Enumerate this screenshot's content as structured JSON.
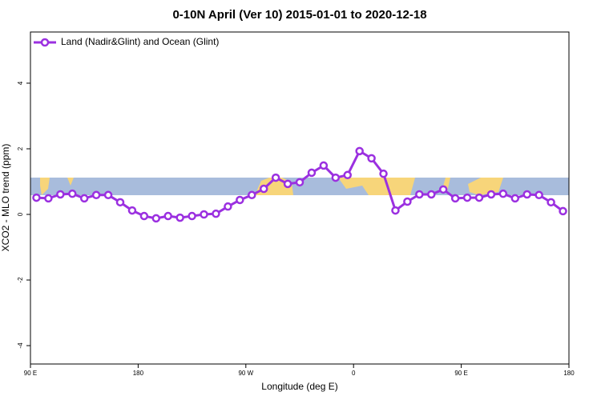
{
  "chart_data": {
    "type": "line",
    "title": "0-10N April (Ver 10)   2015-01-01 to 2020-12-18",
    "x_label": "Longitude (deg E)",
    "y_label": "XCO2 - MLO trend (ppm)",
    "x": [
      95,
      105,
      115,
      125,
      135,
      145,
      155,
      165,
      175,
      185,
      195,
      205,
      215,
      225,
      235,
      245,
      255,
      265,
      275,
      285,
      295,
      305,
      315,
      325,
      335,
      345,
      355,
      365,
      375,
      385,
      395,
      405,
      415,
      425,
      435,
      445,
      455,
      465,
      475,
      485,
      495,
      505,
      515,
      525,
      535
    ],
    "series": [
      {
        "name": "Land (Nadir&Glint) and Ocean (Glint)",
        "color": "#9b30e0",
        "values": [
          0.51,
          0.49,
          0.61,
          0.63,
          0.49,
          0.59,
          0.59,
          0.37,
          0.12,
          -0.05,
          -0.12,
          -0.05,
          -0.1,
          -0.05,
          0,
          0.02,
          0.24,
          0.44,
          0.59,
          0.78,
          1.12,
          0.93,
          0.98,
          1.27,
          1.49,
          1.12,
          1.2,
          1.93,
          1.71,
          1.24,
          0.12,
          0.39,
          0.61,
          0.61,
          0.76,
          0.49,
          0.51,
          0.51,
          0.61,
          0.63,
          0.49,
          0.61,
          0.59,
          0.37,
          0.1
        ]
      }
    ],
    "xlim": [
      90,
      540
    ],
    "xticks": [
      {
        "value": 90,
        "label": "90 E"
      },
      {
        "value": 180,
        "label": "180"
      },
      {
        "value": 270,
        "label": "90 W"
      },
      {
        "value": 360,
        "label": "0"
      },
      {
        "value": 450,
        "label": "90 E"
      },
      {
        "value": 540,
        "label": "180"
      }
    ],
    "ylim": [
      -4.56,
      5.56
    ],
    "yticks": [
      -4,
      -2,
      0,
      2,
      4
    ],
    "legend": "top-left"
  }
}
